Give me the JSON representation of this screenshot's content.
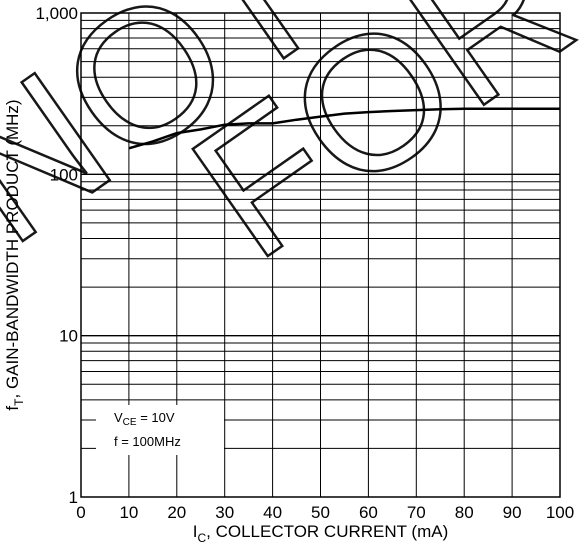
{
  "chart_data": {
    "type": "line",
    "x": [
      10,
      15,
      20,
      25,
      30,
      35,
      40,
      45,
      50,
      55,
      60,
      65,
      70,
      75,
      80,
      85,
      90,
      95,
      100
    ],
    "series": [
      {
        "values": [
          145,
          160,
          180,
          190,
          203,
          207,
          207,
          218,
          228,
          238,
          243,
          247,
          250,
          253,
          255,
          255,
          255,
          255,
          255
        ],
        "color": "#000000"
      }
    ],
    "xlabel_main": "I",
    "xlabel_sub": "C",
    "xlabel_rest": ", COLLECTOR CURRENT (mA)",
    "ylabel_main": "f",
    "ylabel_sub": "T",
    "ylabel_rest": ", GAIN-BANDWIDTH PRODUCT (MHz)",
    "xlim": [
      0,
      100
    ],
    "ylim": [
      1,
      1000
    ],
    "y_scale": "log",
    "x_ticks": [
      "0",
      "10",
      "20",
      "30",
      "40",
      "50",
      "60",
      "70",
      "80",
      "90",
      "100"
    ],
    "y_ticks": [
      "1",
      "10",
      "100",
      "1,000"
    ],
    "grid": true,
    "annotations": {
      "vce_main": "V",
      "vce_sub": "CE",
      "vce_rest": " = 10V",
      "freq": "f = 100MHz"
    },
    "watermark": "NOT FOR NEW DESIGN"
  }
}
